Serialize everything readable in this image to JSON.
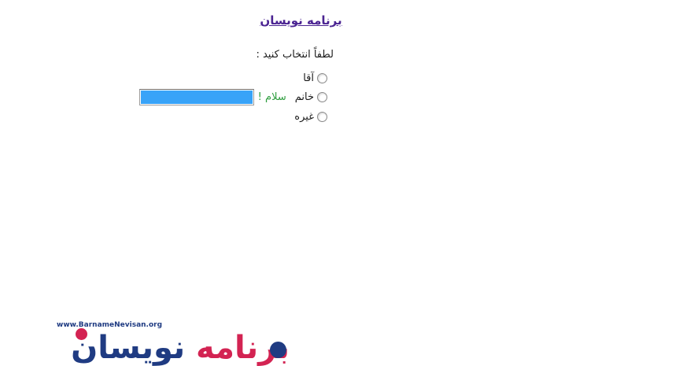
{
  "page": {
    "title": "برنامه نویسان",
    "prompt": "لطفاً انتخاب کنید :",
    "greeting": "سلام !",
    "options": [
      {
        "label": "آقا"
      },
      {
        "label": "خانم"
      },
      {
        "label": "غیره"
      }
    ],
    "input_value": ""
  },
  "logo": {
    "url_text": "www.BarnameNevisan.org",
    "word_first": "برنامه",
    "word_second": "نویسان"
  },
  "colors": {
    "title_purple": "#4b2492",
    "greeting_green": "#2f9e3f",
    "selection_blue": "#38a3f8",
    "logo_navy": "#1f3b82",
    "logo_crimson": "#d32352"
  }
}
